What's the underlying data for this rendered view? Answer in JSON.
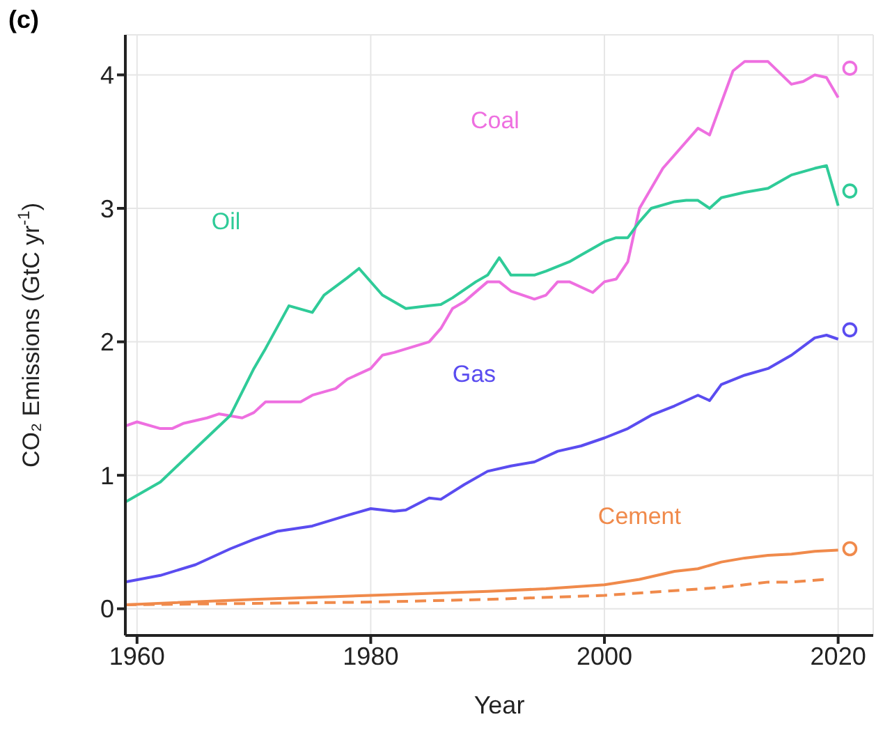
{
  "chart_data": {
    "type": "line",
    "xlabel": "Year",
    "ylabel": "CO₂ Emissions (GtC yr$^{-1}$)",
    "xlim": [
      1959,
      2023
    ],
    "ylim": [
      -0.2,
      4.3
    ],
    "xticks": [
      1960,
      1980,
      2000,
      2020
    ],
    "yticks": [
      0,
      1,
      2,
      3,
      4
    ],
    "grid": true,
    "annotations": [
      "(c)"
    ],
    "series": [
      {
        "name": "Coal",
        "color": "#ee6fe0",
        "x": [
          1959,
          1960,
          1962,
          1963,
          1964,
          1966,
          1967,
          1969,
          1970,
          1971,
          1974,
          1975,
          1977,
          1978,
          1980,
          1981,
          1982,
          1985,
          1986,
          1987,
          1988,
          1990,
          1991,
          1992,
          1994,
          1995,
          1996,
          1997,
          1999,
          2000,
          2001,
          2002,
          2003,
          2005,
          2008,
          2009,
          2011,
          2012,
          2014,
          2016,
          2017,
          2018,
          2019,
          2020
        ],
        "values": [
          1.37,
          1.4,
          1.35,
          1.35,
          1.39,
          1.43,
          1.46,
          1.43,
          1.47,
          1.55,
          1.55,
          1.6,
          1.65,
          1.72,
          1.8,
          1.9,
          1.92,
          2.0,
          2.1,
          2.25,
          2.3,
          2.45,
          2.45,
          2.38,
          2.32,
          2.35,
          2.45,
          2.45,
          2.37,
          2.45,
          2.47,
          2.6,
          3.0,
          3.3,
          3.6,
          3.55,
          4.03,
          4.1,
          4.1,
          3.93,
          3.95,
          4.0,
          3.98,
          3.83
        ]
      },
      {
        "name": "Oil",
        "color": "#2fcb98",
        "x": [
          1959,
          1962,
          1965,
          1968,
          1970,
          1971,
          1973,
          1975,
          1976,
          1978,
          1979,
          1981,
          1983,
          1985,
          1986,
          1987,
          1989,
          1990,
          1991,
          1992,
          1994,
          1995,
          1997,
          1998,
          2000,
          2001,
          2002,
          2003,
          2004,
          2006,
          2007,
          2008,
          2009,
          2010,
          2012,
          2014,
          2016,
          2018,
          2019,
          2020
        ],
        "values": [
          0.8,
          0.95,
          1.2,
          1.45,
          1.8,
          1.95,
          2.27,
          2.22,
          2.35,
          2.48,
          2.55,
          2.35,
          2.25,
          2.27,
          2.28,
          2.33,
          2.45,
          2.5,
          2.63,
          2.5,
          2.5,
          2.53,
          2.6,
          2.65,
          2.75,
          2.78,
          2.78,
          2.9,
          3.0,
          3.05,
          3.06,
          3.06,
          3.0,
          3.08,
          3.12,
          3.15,
          3.25,
          3.3,
          3.32,
          3.02
        ]
      },
      {
        "name": "Gas",
        "color": "#5a4cf0",
        "x": [
          1959,
          1962,
          1965,
          1968,
          1970,
          1972,
          1975,
          1978,
          1980,
          1982,
          1983,
          1985,
          1986,
          1988,
          1990,
          1992,
          1994,
          1996,
          1998,
          2000,
          2002,
          2004,
          2006,
          2008,
          2009,
          2010,
          2012,
          2014,
          2016,
          2018,
          2019,
          2020
        ],
        "values": [
          0.2,
          0.25,
          0.33,
          0.45,
          0.52,
          0.58,
          0.62,
          0.7,
          0.75,
          0.73,
          0.74,
          0.83,
          0.82,
          0.93,
          1.03,
          1.07,
          1.1,
          1.18,
          1.22,
          1.28,
          1.35,
          1.45,
          1.52,
          1.6,
          1.56,
          1.68,
          1.75,
          1.8,
          1.9,
          2.03,
          2.05,
          2.02
        ]
      },
      {
        "name": "Cement",
        "color": "#f08a4b",
        "x": [
          1959,
          1970,
          1980,
          1990,
          1995,
          2000,
          2003,
          2006,
          2008,
          2010,
          2012,
          2014,
          2016,
          2018,
          2020
        ],
        "values": [
          0.03,
          0.07,
          0.1,
          0.13,
          0.15,
          0.18,
          0.22,
          0.28,
          0.3,
          0.35,
          0.38,
          0.4,
          0.41,
          0.43,
          0.44
        ]
      },
      {
        "color": "#f08a4b",
        "line_style": "dashed",
        "x": [
          1959,
          1970,
          1980,
          1990,
          2000,
          2010,
          2014,
          2016,
          2019
        ],
        "values": [
          0.03,
          0.04,
          0.05,
          0.07,
          0.1,
          0.16,
          0.2,
          0.2,
          0.22
        ]
      },
      {
        "type": "scatter",
        "marker": "circle",
        "color": "#ee6fe0",
        "x": [
          2021
        ],
        "values": [
          4.05
        ]
      },
      {
        "type": "scatter",
        "marker": "circle",
        "color": "#2fcb98",
        "x": [
          2021
        ],
        "values": [
          3.13
        ]
      },
      {
        "type": "scatter",
        "marker": "circle",
        "color": "#5a4cf0",
        "x": [
          2021
        ],
        "values": [
          2.09
        ]
      },
      {
        "type": "scatter",
        "marker": "circle",
        "color": "#f08a4b",
        "x": [
          2021
        ],
        "values": [
          0.45
        ]
      }
    ]
  }
}
